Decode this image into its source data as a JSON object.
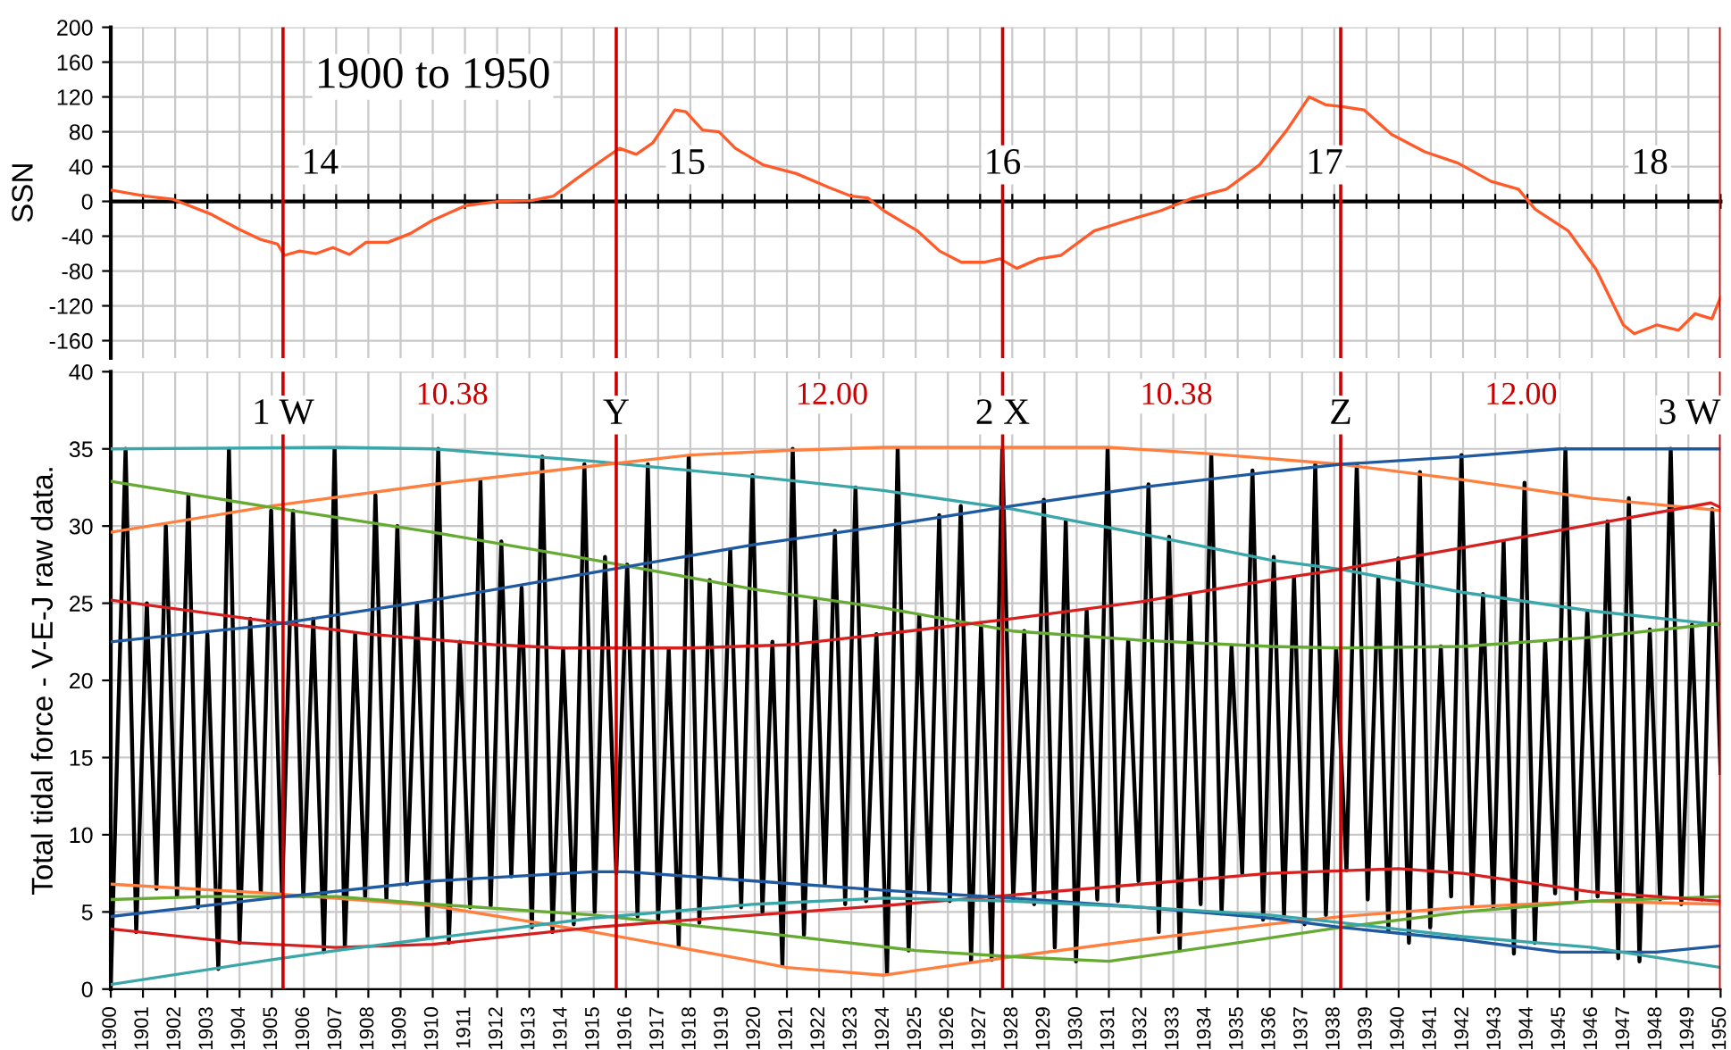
{
  "chart_data": [
    {
      "type": "line",
      "title": "1900 to 1950",
      "ylabel": "SSN",
      "xlim": [
        1900,
        1950
      ],
      "xticks": [
        1900,
        1901,
        1902,
        1903,
        1904,
        1905,
        1906,
        1907,
        1908,
        1909,
        1910,
        1911,
        1912,
        1913,
        1914,
        1915,
        1916,
        1917,
        1918,
        1919,
        1920,
        1921,
        1922,
        1923,
        1924,
        1925,
        1926,
        1927,
        1928,
        1929,
        1930,
        1931,
        1932,
        1933,
        1934,
        1935,
        1936,
        1937,
        1938,
        1939,
        1940,
        1941,
        1942,
        1943,
        1944,
        1945,
        1946,
        1947,
        1948,
        1949,
        1950
      ],
      "ylim": [
        -180,
        200
      ],
      "yticks": [
        -160,
        -120,
        -80,
        -40,
        0,
        40,
        80,
        120,
        160,
        200
      ],
      "grid": true,
      "tick_labels": "y",
      "legend": false,
      "series": [
        {
          "color": "#ff5a2a",
          "x": [
            1900.04,
            1901.07,
            1901.93,
            1902.27,
            1903.13,
            1903.98,
            1904.67,
            1905.18,
            1905.39,
            1905.87,
            1906.38,
            1906.9,
            1907.41,
            1907.93,
            1908.61,
            1909.3,
            1909.98,
            1911.01,
            1912.03,
            1913.07,
            1913.75,
            1914.43,
            1915.29,
            1915.8,
            1916.32,
            1916.83,
            1917.52,
            1917.86,
            1918.38,
            1918.89,
            1919.4,
            1920.26,
            1921.29,
            1922.31,
            1923.0,
            1923.51,
            1924.02,
            1925.06,
            1925.74,
            1926.42,
            1927.11,
            1927.62,
            1928.14,
            1928.82,
            1929.51,
            1930.54,
            1931.56,
            1932.59,
            1933.62,
            1934.65,
            1935.68,
            1936.53,
            1937.22,
            1937.73,
            1938.24,
            1938.93,
            1939.78,
            1940.81,
            1941.84,
            1942.87,
            1943.72,
            1944.24,
            1945.27,
            1946.13,
            1946.98,
            1947.32,
            1948.01,
            1948.69,
            1949.21,
            1949.73,
            1950.0
          ],
          "values": [
            12.7,
            6,
            2.5,
            -2.5,
            -15,
            -32,
            -44,
            -49,
            -62,
            -57,
            -60,
            -53,
            -61,
            -47,
            -47,
            -37,
            -22,
            -5,
            0,
            1,
            6,
            25,
            48,
            61,
            54,
            67,
            105,
            103,
            82,
            80,
            61,
            42,
            32,
            16,
            6,
            4,
            -11,
            -34,
            -57,
            -70,
            -70,
            -66,
            -77,
            -66,
            -62,
            -34,
            -22,
            -11,
            4,
            14,
            42,
            82,
            120,
            111,
            109,
            105,
            77,
            57,
            44,
            23,
            14,
            -9,
            -34,
            -78,
            -142,
            -152,
            -142,
            -148,
            -129,
            -135,
            -110
          ]
        }
      ],
      "ref_lines": [
        {
          "axis": "x",
          "value": 1905.35,
          "color": "#cc0000"
        },
        {
          "axis": "x",
          "value": 1915.7,
          "color": "#cc0000"
        },
        {
          "axis": "x",
          "value": 1927.7,
          "color": "#cc0000"
        },
        {
          "axis": "x",
          "value": 1938.2,
          "color": "#cc0000"
        },
        {
          "axis": "x",
          "value": 1950,
          "color": "#cc0000"
        }
      ],
      "annotations": [
        {
          "text": "14",
          "x": 1906.5,
          "y": 42
        },
        {
          "text": "15",
          "x": 1917.9,
          "y": 42
        },
        {
          "text": "16",
          "x": 1927.7,
          "y": 42
        },
        {
          "text": "17",
          "x": 1937.7,
          "y": 42
        },
        {
          "text": "18",
          "x": 1947.8,
          "y": 42
        }
      ]
    },
    {
      "type": "line",
      "ylabel": "Total tidal force - V-E-J raw data.",
      "xlim": [
        1900,
        1950
      ],
      "xticks": [
        1900,
        1901,
        1902,
        1903,
        1904,
        1905,
        1906,
        1907,
        1908,
        1909,
        1910,
        1911,
        1912,
        1913,
        1914,
        1915,
        1916,
        1917,
        1918,
        1919,
        1920,
        1921,
        1922,
        1923,
        1924,
        1925,
        1926,
        1927,
        1928,
        1929,
        1930,
        1931,
        1932,
        1933,
        1934,
        1935,
        1936,
        1937,
        1938,
        1939,
        1940,
        1941,
        1942,
        1943,
        1944,
        1945,
        1946,
        1947,
        1948,
        1949,
        1950
      ],
      "ylim": [
        0,
        40
      ],
      "yticks": [
        0,
        5,
        10,
        15,
        20,
        25,
        30,
        35,
        40
      ],
      "grid": true,
      "legend": false,
      "series": [
        {
          "color": "#000000",
          "x": [
            1900.0,
            1900.46,
            1900.79,
            1901.12,
            1901.42,
            1901.71,
            1902.06,
            1902.41,
            1902.71,
            1903.0,
            1903.34,
            1903.67,
            1904.0,
            1904.33,
            1904.66,
            1904.98,
            1905.32,
            1905.66,
            1905.98,
            1906.29,
            1906.62,
            1906.95,
            1907.27,
            1907.59,
            1907.9,
            1908.22,
            1908.56,
            1908.9,
            1909.2,
            1909.51,
            1909.84,
            1910.17,
            1910.5,
            1910.84,
            1911.16,
            1911.48,
            1911.8,
            1912.13,
            1912.44,
            1912.76,
            1913.08,
            1913.4,
            1913.72,
            1914.05,
            1914.38,
            1914.71,
            1915.03,
            1915.35,
            1915.7,
            1916.04,
            1916.36,
            1916.68,
            1917.0,
            1917.33,
            1917.64,
            1917.95,
            1918.28,
            1918.6,
            1918.92,
            1919.24,
            1919.58,
            1919.93,
            1920.24,
            1920.55,
            1920.86,
            1921.18,
            1921.53,
            1921.88,
            1922.18,
            1922.49,
            1922.81,
            1923.13,
            1923.46,
            1923.78,
            1924.11,
            1924.44,
            1924.78,
            1925.11,
            1925.42,
            1925.73,
            1926.06,
            1926.4,
            1926.72,
            1927.03,
            1927.36,
            1927.69,
            1928.03,
            1928.37,
            1928.68,
            1928.98,
            1929.32,
            1929.66,
            1929.98,
            1930.31,
            1930.64,
            1930.96,
            1931.28,
            1931.6,
            1931.92,
            1932.23,
            1932.55,
            1932.87,
            1933.2,
            1933.52,
            1933.85,
            1934.18,
            1934.5,
            1934.81,
            1935.14,
            1935.46,
            1935.79,
            1936.12,
            1936.44,
            1936.75,
            1937.08,
            1937.41,
            1937.74,
            1938.06,
            1938.38,
            1938.7,
            1939.04,
            1939.37,
            1939.68,
            1939.99,
            1940.32,
            1940.66,
            1940.98,
            1941.31,
            1941.63,
            1941.95,
            1942.28,
            1942.62,
            1942.94,
            1943.26,
            1943.58,
            1943.91,
            1944.23,
            1944.55,
            1944.86,
            1945.18,
            1945.52,
            1945.86,
            1946.18,
            1946.49,
            1946.82,
            1947.15,
            1947.48,
            1947.8,
            1948.12,
            1948.45,
            1948.78,
            1949.11,
            1949.42,
            1949.74,
            1950.0
          ],
          "values": [
            0.3,
            35,
            3.7,
            25,
            6.5,
            30,
            6,
            32,
            5.3,
            23,
            1.3,
            35,
            3,
            24,
            6.3,
            31,
            6,
            31,
            6,
            24,
            2.4,
            35,
            2.7,
            23,
            6,
            32,
            5.8,
            30,
            6.8,
            25,
            3.3,
            35,
            3,
            22.5,
            5.3,
            33,
            5.4,
            29,
            7.3,
            26,
            4,
            34.5,
            3.7,
            22,
            4.2,
            34,
            5,
            28,
            7.5,
            27.5,
            4.7,
            34,
            4.4,
            22,
            2.8,
            34.5,
            4.3,
            26.5,
            7.3,
            28.5,
            5.3,
            33.3,
            5,
            22.5,
            1.5,
            35,
            3.5,
            25.3,
            6.8,
            29.7,
            5.5,
            32.5,
            5.7,
            23,
            1,
            35,
            2.5,
            24.2,
            6.3,
            30.7,
            5.7,
            31.3,
            1.8,
            23.6,
            1.9,
            35,
            5.8,
            23.2,
            5.5,
            31.7,
            2.7,
            30.3,
            1.8,
            24.5,
            5.8,
            35,
            5.7,
            22.6,
            7,
            32.7,
            3.7,
            29.3,
            2.5,
            25.5,
            5.5,
            34.6,
            4.9,
            22.2,
            7.5,
            33.6,
            4.5,
            28,
            4.8,
            26.7,
            4.2,
            34,
            4.8,
            22,
            7.7,
            34,
            5.8,
            26.7,
            3.8,
            27.9,
            3,
            33.5,
            4,
            22.2,
            6,
            34.6,
            5.5,
            25.6,
            5.3,
            29,
            2.3,
            32.8,
            3,
            22.5,
            6.2,
            35,
            5.7,
            24.5,
            6,
            30.3,
            2,
            31.8,
            1.8,
            23.3,
            5.8,
            35,
            5.5,
            23.6,
            5.8,
            31.1,
            14
          ]
        },
        {
          "color": "#3aa6a8",
          "x": [
            1900,
            1907,
            1910,
            1915,
            1920,
            1924,
            1928,
            1932,
            1936,
            1938.2,
            1942,
            1946,
            1950
          ],
          "values": [
            35,
            35.1,
            35,
            34.2,
            33.2,
            32.3,
            31.1,
            29.5,
            27.8,
            27.2,
            25.7,
            24.5,
            23.6
          ]
        },
        {
          "color": "#ff7f3f",
          "x": [
            1900,
            1905,
            1910,
            1915,
            1918,
            1921,
            1924,
            1931,
            1934,
            1938.2,
            1942,
            1946,
            1950
          ],
          "values": [
            29.6,
            31.3,
            32.7,
            33.9,
            34.6,
            34.9,
            35.1,
            35.1,
            34.7,
            34,
            33,
            31.8,
            31
          ]
        },
        {
          "color": "#66aa33",
          "x": [
            1900,
            1905,
            1910,
            1915,
            1920,
            1924,
            1928,
            1932,
            1936,
            1938.2,
            1942,
            1946,
            1950
          ],
          "values": [
            32.9,
            31.2,
            29.6,
            27.8,
            25.9,
            24.7,
            23.2,
            22.6,
            22.2,
            22.1,
            22.2,
            22.8,
            23.7
          ]
        },
        {
          "color": "#d62020",
          "x": [
            1900,
            1905,
            1908,
            1912,
            1914,
            1918,
            1921,
            1924,
            1928,
            1932,
            1936,
            1938.2,
            1942,
            1946,
            1949.7,
            1950
          ],
          "values": [
            25.2,
            23.8,
            23,
            22.3,
            22.1,
            22.1,
            22.3,
            23,
            24,
            25.1,
            26.5,
            27.2,
            28.6,
            30.1,
            31.5,
            31.2
          ]
        },
        {
          "color": "#1f5aa0",
          "x": [
            1900,
            1905,
            1910,
            1915,
            1920,
            1924,
            1928,
            1932,
            1936,
            1938.2,
            1942,
            1945,
            1950
          ],
          "values": [
            22.5,
            23.6,
            25.2,
            27,
            28.8,
            30,
            31.3,
            32.5,
            33.5,
            34,
            34.5,
            35,
            35
          ]
        },
        {
          "color": "#ff7f3f",
          "x": [
            1900,
            1905,
            1910,
            1915,
            1920,
            1921,
            1924,
            1928,
            1932,
            1936,
            1938.2,
            1942,
            1946,
            1950
          ],
          "values": [
            6.8,
            6.2,
            5.4,
            3.7,
            1.8,
            1.4,
            0.9,
            2.1,
            3.2,
            4.2,
            4.7,
            5.3,
            5.7,
            5.5
          ]
        },
        {
          "color": "#66aa33",
          "x": [
            1900,
            1903,
            1907,
            1910,
            1915,
            1920,
            1925,
            1928,
            1931,
            1935,
            1938.2,
            1942,
            1946,
            1950
          ],
          "values": [
            5.8,
            6,
            6,
            5.5,
            4.8,
            3.7,
            2.5,
            2.1,
            1.8,
            3,
            4,
            5,
            5.7,
            6
          ]
        },
        {
          "color": "#d62020",
          "x": [
            1900,
            1904,
            1907,
            1910,
            1915,
            1920,
            1924,
            1928,
            1932,
            1936,
            1940,
            1942,
            1946,
            1950
          ],
          "values": [
            3.9,
            3,
            2.7,
            2.9,
            4,
            4.8,
            5.4,
            6.1,
            6.8,
            7.5,
            7.8,
            7.5,
            6.3,
            5.7
          ]
        },
        {
          "color": "#1f5aa0",
          "x": [
            1900,
            1905,
            1910,
            1915,
            1916,
            1920,
            1924,
            1928,
            1932,
            1936,
            1938.2,
            1942,
            1945,
            1948,
            1950
          ],
          "values": [
            4.7,
            5.9,
            7,
            7.6,
            7.6,
            7,
            6.4,
            5.9,
            5.3,
            4.6,
            4,
            3.2,
            2.4,
            2.4,
            2.8
          ]
        },
        {
          "color": "#3aa6a8",
          "x": [
            1900,
            1905,
            1907,
            1910,
            1915,
            1920,
            1924,
            1928,
            1932,
            1936,
            1938.2,
            1942,
            1946,
            1950
          ],
          "values": [
            0.3,
            1.9,
            2.5,
            3.3,
            4.6,
            5.5,
            5.9,
            5.7,
            5.3,
            4.8,
            4.3,
            3.4,
            2.7,
            1.4
          ]
        }
      ],
      "ref_lines": [
        {
          "axis": "x",
          "value": 1905.35,
          "label": "1 W",
          "color": "#cc0000"
        },
        {
          "axis": "x",
          "value": 1915.7,
          "label": "Y",
          "color": "#cc0000"
        },
        {
          "axis": "x",
          "value": 1927.7,
          "label": "2 X",
          "color": "#cc0000"
        },
        {
          "axis": "x",
          "value": 1938.2,
          "label": "Z",
          "color": "#cc0000"
        },
        {
          "axis": "x",
          "value": 1950,
          "label": "3 W",
          "color": "#cc0000"
        }
      ],
      "annotations": [
        {
          "text": "10.38",
          "x": 1910.6,
          "y": 38.4
        },
        {
          "text": "12.00",
          "x": 1922.4,
          "y": 38.4
        },
        {
          "text": "10.38",
          "x": 1933.1,
          "y": 38.4
        },
        {
          "text": "12.00",
          "x": 1943.8,
          "y": 38.4
        }
      ]
    }
  ]
}
